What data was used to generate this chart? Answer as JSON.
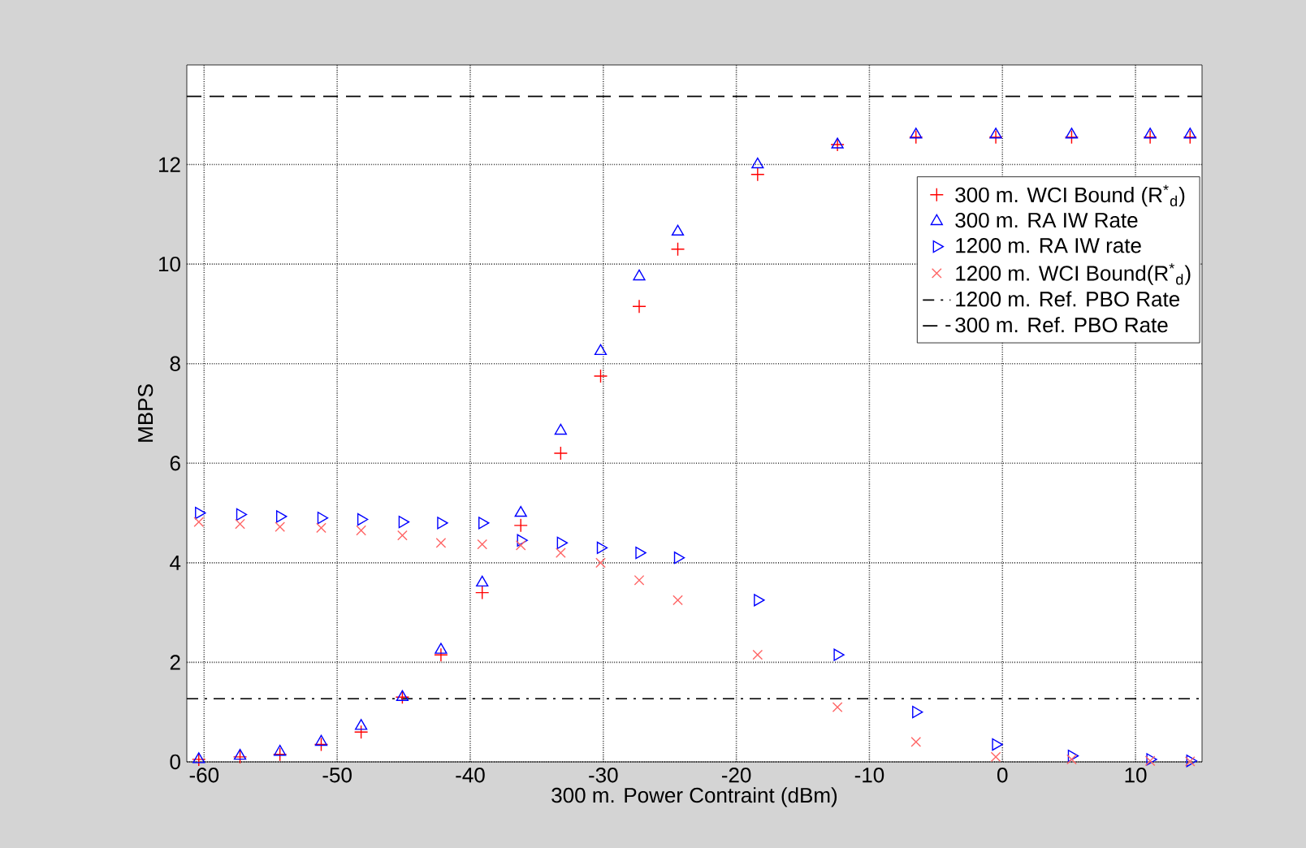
{
  "chart_data": {
    "type": "scatter",
    "xlabel": "300 m. Power Contraint (dBm)",
    "ylabel": "MBPS",
    "x": [
      -60.4,
      -57.3,
      -54.3,
      -51.2,
      -48.2,
      -45.1,
      -42.2,
      -39.1,
      -36.2,
      -33.2,
      -30.2,
      -27.3,
      -24.4,
      -18.4,
      -12.4,
      -6.5,
      -0.5,
      5.2,
      11.1,
      14.1
    ],
    "series": [
      {
        "name": "300 m. WCI Bound (R$^{*}$$_{d}$)",
        "color": "#ff0000",
        "marker": "cross",
        "values": [
          0.05,
          0.1,
          0.15,
          0.35,
          0.6,
          1.3,
          2.15,
          3.4,
          4.75,
          6.2,
          7.75,
          9.15,
          10.3,
          11.8,
          12.4,
          12.55,
          12.55,
          12.55,
          12.55,
          12.55
        ]
      },
      {
        "name": "300 m. RA IW Rate",
        "color": "#0000ff",
        "marker": "triangle",
        "values": [
          0.05,
          0.12,
          0.2,
          0.4,
          0.72,
          1.3,
          2.25,
          3.6,
          5.0,
          6.65,
          8.25,
          9.75,
          10.65,
          12.0,
          12.4,
          12.6,
          12.6,
          12.6,
          12.6,
          12.6
        ]
      },
      {
        "name": "1200 m. RA IW rate",
        "color": "#0000ff",
        "marker": "triangle-right",
        "values": [
          5.0,
          4.97,
          4.93,
          4.9,
          4.87,
          4.82,
          4.8,
          4.8,
          4.45,
          4.4,
          4.3,
          4.2,
          4.1,
          3.25,
          2.15,
          1.0,
          0.35,
          0.12,
          0.05,
          0.02
        ]
      },
      {
        "name": "1200 m. WCI Bound(R$^{*}$$_{d}$)",
        "color": "#ff6666",
        "marker": "x",
        "values": [
          4.82,
          4.78,
          4.72,
          4.7,
          4.65,
          4.55,
          4.4,
          4.37,
          4.35,
          4.2,
          4.0,
          3.65,
          3.25,
          2.15,
          1.1,
          0.4,
          0.1,
          0.05,
          0.02,
          0.01
        ]
      }
    ],
    "ref_lines": [
      {
        "axis": "y",
        "value": 1.27,
        "label": "1200 m. Ref. PBO Rate",
        "color": "#000000",
        "line_style": "dashdot"
      },
      {
        "axis": "y",
        "value": 13.37,
        "label": "300 m. Ref. PBO Rate",
        "color": "#000000",
        "line_style": "dashed"
      }
    ],
    "xlim": [
      -61.3,
      15
    ],
    "ylim": [
      0,
      14
    ],
    "xticks": [
      -60,
      -50,
      -40,
      -30,
      -20,
      -10,
      0,
      10
    ],
    "yticks": [
      0,
      2,
      4,
      6,
      8,
      10,
      12
    ],
    "grid": true,
    "legend": "top right"
  }
}
